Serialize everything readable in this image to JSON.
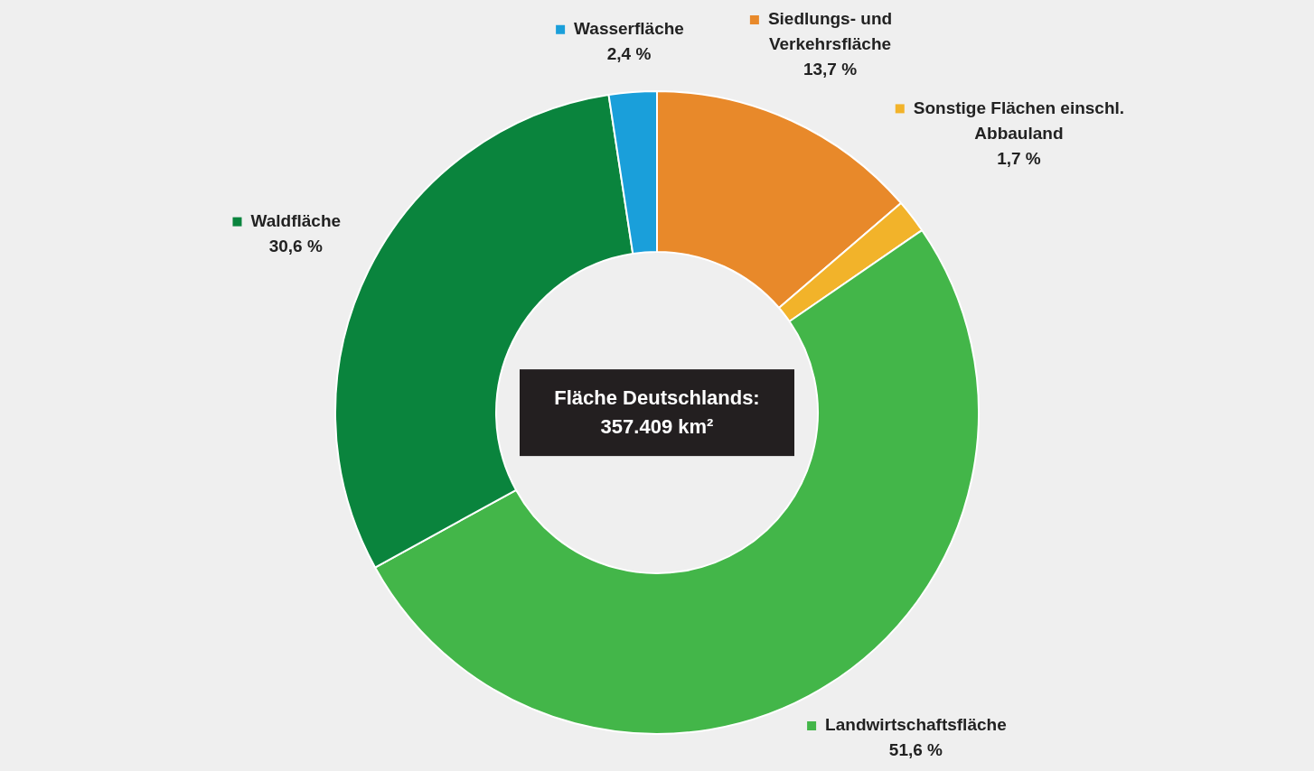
{
  "chart_data": {
    "type": "donut",
    "categories": [
      "Siedlungs- und Verkehrsfläche",
      "Sonstige Flächen einschl. Abbauland",
      "Landwirtschaftsfläche",
      "Waldfläche",
      "Wasserfläche"
    ],
    "values": [
      13.7,
      1.7,
      51.6,
      30.6,
      2.4
    ],
    "value_labels": [
      "13,7 %",
      "1,7 %",
      "51,6 %",
      "30,6 %",
      "2,4 %"
    ],
    "colors": [
      "#e8892a",
      "#f2b32a",
      "#43b649",
      "#0a843d",
      "#1a9fda"
    ],
    "legend": "right",
    "annotations": [
      "Fläche Deutschlands: 357.409 km²"
    ]
  }
}
